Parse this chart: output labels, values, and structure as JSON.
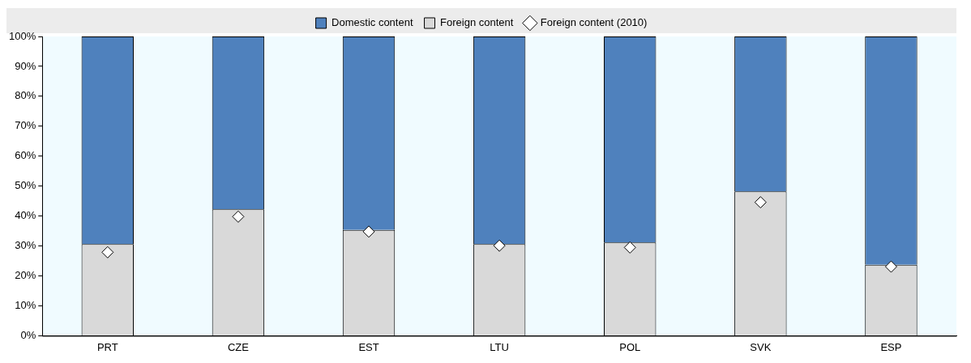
{
  "chart_data": {
    "type": "bar",
    "stacked": true,
    "categories": [
      "PRT",
      "CZE",
      "EST",
      "LTU",
      "POL",
      "SVK",
      "ESP"
    ],
    "series": [
      {
        "name": "Foreign content",
        "color": "#d9d9d9",
        "values": [
          30.6,
          42.3,
          35.4,
          30.6,
          31.2,
          48.2,
          23.7
        ]
      },
      {
        "name": "Domestic content",
        "color": "#4f81bd",
        "values": [
          69.4,
          57.7,
          64.6,
          69.4,
          68.8,
          51.8,
          76.3
        ]
      },
      {
        "name": "Foreign content (2010)",
        "type": "scatter",
        "color": "#ffffff",
        "marker": "diamond",
        "x": [
          "PRT",
          "CZE",
          "EST",
          "LTU",
          "POL",
          "SVK",
          "ESP"
        ],
        "values": [
          27.9,
          39.8,
          34.8,
          30.1,
          29.5,
          44.6,
          23.1
        ]
      }
    ],
    "ylim": [
      0,
      100
    ],
    "yticks": [
      {
        "value": 0,
        "label": "0%"
      },
      {
        "value": 10,
        "label": "10%"
      },
      {
        "value": 20,
        "label": "20%"
      },
      {
        "value": 30,
        "label": "30%"
      },
      {
        "value": 40,
        "label": "40%"
      },
      {
        "value": 50,
        "label": "50%"
      },
      {
        "value": 60,
        "label": "60%"
      },
      {
        "value": 70,
        "label": "70%"
      },
      {
        "value": 80,
        "label": "80%"
      },
      {
        "value": 90,
        "label": "90%"
      },
      {
        "value": 100,
        "label": "100%"
      }
    ],
    "grid": false,
    "legend": "top"
  }
}
